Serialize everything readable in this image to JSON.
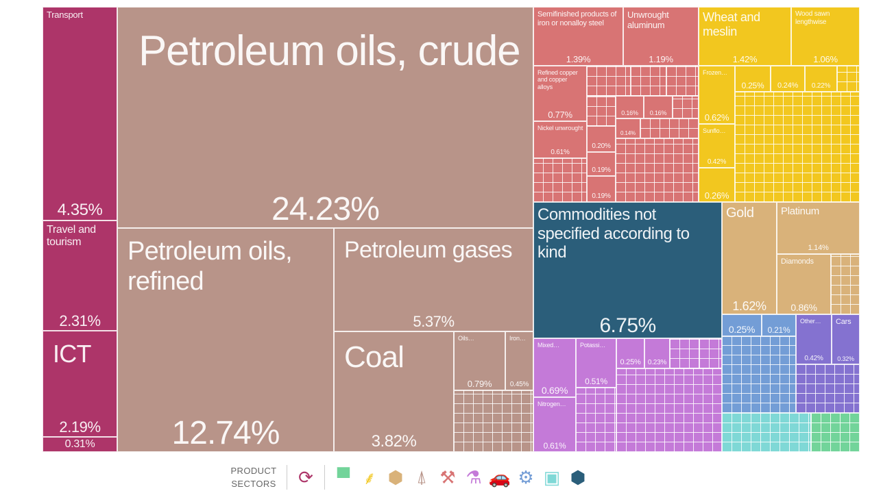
{
  "chart_data": {
    "type": "treemap",
    "tiles": [
      {
        "name": "Transport",
        "value": "4.35%",
        "sector": "services"
      },
      {
        "name": "Travel and tourism",
        "value": "2.31%",
        "sector": "services"
      },
      {
        "name": "ICT",
        "value": "2.19%",
        "sector": "services"
      },
      {
        "name": "",
        "value": "0.31%",
        "sector": "services"
      },
      {
        "name": "Petroleum oils, crude",
        "value": "24.23%",
        "sector": "minerals"
      },
      {
        "name": "Petroleum oils, refined",
        "value": "12.74%",
        "sector": "minerals"
      },
      {
        "name": "Petroleum gases",
        "value": "5.37%",
        "sector": "minerals"
      },
      {
        "name": "Coal",
        "value": "3.82%",
        "sector": "minerals"
      },
      {
        "name": "Oils…",
        "value": "0.79%",
        "sector": "minerals"
      },
      {
        "name": "Iron…",
        "value": "0.45%",
        "sector": "minerals"
      },
      {
        "name": "Semifinished products of iron or nonalloy steel",
        "value": "1.39%",
        "sector": "metals"
      },
      {
        "name": "Unwrought aluminum",
        "value": "1.19%",
        "sector": "metals"
      },
      {
        "name": "Refined copper and copper alloys",
        "value": "0.77%",
        "sector": "metals"
      },
      {
        "name": "Nickel unwrought",
        "value": "0.61%",
        "sector": "metals"
      },
      {
        "name": "",
        "value": "0.20%",
        "sector": "metals"
      },
      {
        "name": "",
        "value": "0.19%",
        "sector": "metals"
      },
      {
        "name": "",
        "value": "0.19%",
        "sector": "metals"
      },
      {
        "name": "",
        "value": "0.16%",
        "sector": "metals"
      },
      {
        "name": "",
        "value": "0.16%",
        "sector": "metals"
      },
      {
        "name": "",
        "value": "0.14%",
        "sector": "metals"
      },
      {
        "name": "Wheat and meslin",
        "value": "1.42%",
        "sector": "vegetable"
      },
      {
        "name": "Wood sawn lengthwise",
        "value": "1.06%",
        "sector": "vegetable"
      },
      {
        "name": "Frozen…",
        "value": "0.62%",
        "sector": "vegetable"
      },
      {
        "name": "Sunflo…",
        "value": "0.42%",
        "sector": "vegetable"
      },
      {
        "name": "",
        "value": "0.26%",
        "sector": "vegetable"
      },
      {
        "name": "",
        "value": "0.25%",
        "sector": "vegetable"
      },
      {
        "name": "",
        "value": "0.24%",
        "sector": "vegetable"
      },
      {
        "name": "",
        "value": "0.22%",
        "sector": "vegetable"
      },
      {
        "name": "Commodities not specified according to kind",
        "value": "6.75%",
        "sector": "other"
      },
      {
        "name": "Gold",
        "value": "1.62%",
        "sector": "precious"
      },
      {
        "name": "Platinum",
        "value": "1.14%",
        "sector": "precious"
      },
      {
        "name": "Diamonds",
        "value": "0.86%",
        "sector": "precious"
      },
      {
        "name": "Mixed…",
        "value": "0.69%",
        "sector": "chemicals"
      },
      {
        "name": "Nitrogen…",
        "value": "0.61%",
        "sector": "chemicals"
      },
      {
        "name": "Potassi…",
        "value": "0.51%",
        "sector": "chemicals"
      },
      {
        "name": "",
        "value": "0.25%",
        "sector": "chemicals"
      },
      {
        "name": "",
        "value": "0.23%",
        "sector": "chemicals"
      },
      {
        "name": "",
        "value": "0.25%",
        "sector": "machines"
      },
      {
        "name": "",
        "value": "0.21%",
        "sector": "machines"
      },
      {
        "name": "Other…",
        "value": "0.42%",
        "sector": "transportation"
      },
      {
        "name": "Cars",
        "value": "0.32%",
        "sector": "transportation"
      }
    ],
    "sector_colors": {
      "services": "#ad3569",
      "minerals": "#b89489",
      "metals": "#d87474",
      "vegetable": "#f2c71f",
      "other": "#2b5e7a",
      "precious": "#d9b27a",
      "chemicals": "#c47ad8",
      "machines": "#739dd6",
      "transportation": "#8472d0",
      "electronics": "#7fd8d6",
      "textiles": "#72d49a"
    }
  },
  "legend": {
    "title_line1": "PRODUCT",
    "title_line2": "SECTORS",
    "icons": [
      {
        "name": "services-icon",
        "color": "#ad3569"
      },
      {
        "name": "textiles-icon",
        "color": "#72d49a"
      },
      {
        "name": "vegetable-icon",
        "color": "#f2c71f"
      },
      {
        "name": "precious-stones-icon",
        "color": "#d9b27a"
      },
      {
        "name": "minerals-icon",
        "color": "#b89489"
      },
      {
        "name": "metals-icon",
        "color": "#d87474"
      },
      {
        "name": "chemicals-icon",
        "color": "#c47ad8"
      },
      {
        "name": "transportation-icon",
        "color": "#8472d0"
      },
      {
        "name": "machines-icon",
        "color": "#739dd6"
      },
      {
        "name": "electronics-icon",
        "color": "#7fd8d6"
      },
      {
        "name": "other-icon",
        "color": "#2b5e7a"
      }
    ]
  }
}
